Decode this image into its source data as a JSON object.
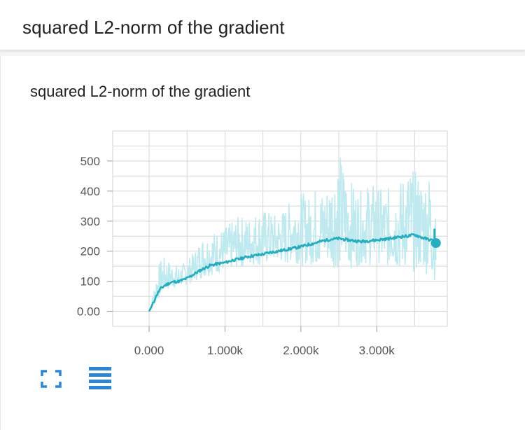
{
  "header": {
    "title": "squared L2-norm of the gradient"
  },
  "card": {
    "title": "squared L2-norm of the gradient",
    "buttons": {
      "fullscreen": "fullscreen-icon",
      "toggle_log": "list-lines-icon"
    }
  },
  "colors": {
    "smoothed": "#26adbf",
    "raw": "#bde9ef",
    "grid": "#d6d6d6"
  },
  "chart_data": {
    "type": "line",
    "title": "",
    "xlabel": "",
    "ylabel": "",
    "xlim": [
      -480,
      3930
    ],
    "ylim": [
      -50,
      600
    ],
    "x_ticks": [
      0,
      1000,
      2000,
      3000
    ],
    "x_tick_labels": [
      "0.000",
      "1.000k",
      "2.000k",
      "3.000k"
    ],
    "y_ticks": [
      0,
      100,
      200,
      300,
      400,
      500
    ],
    "y_tick_labels": [
      "0.00",
      "100",
      "200",
      "300",
      "400",
      "500"
    ],
    "grid": true,
    "series": [
      {
        "role": "smoothed",
        "x": [
          0,
          50,
          100,
          150,
          200,
          250,
          300,
          400,
          500,
          600,
          700,
          800,
          900,
          1000,
          1100,
          1200,
          1300,
          1400,
          1500,
          1600,
          1700,
          1800,
          1900,
          2000,
          2100,
          2200,
          2300,
          2400,
          2500,
          2600,
          2700,
          2800,
          2900,
          3000,
          3100,
          3200,
          3300,
          3400,
          3500,
          3600,
          3700,
          3750,
          3780
        ],
        "y": [
          0,
          25,
          55,
          75,
          85,
          92,
          97,
          100,
          110,
          125,
          140,
          152,
          158,
          162,
          170,
          175,
          182,
          186,
          190,
          196,
          200,
          205,
          210,
          215,
          222,
          228,
          235,
          240,
          242,
          238,
          235,
          232,
          235,
          237,
          240,
          243,
          248,
          250,
          255,
          245,
          238,
          235,
          227
        ]
      },
      {
        "role": "raw",
        "x": [
          0,
          50,
          100,
          150,
          200,
          250,
          300,
          400,
          500,
          600,
          700,
          800,
          900,
          1000,
          1100,
          1200,
          1300,
          1400,
          1500,
          1600,
          1700,
          1800,
          1900,
          2000,
          2100,
          2200,
          2300,
          2400,
          2500,
          2600,
          2700,
          2800,
          2900,
          3000,
          3100,
          3200,
          3300,
          3400,
          3500,
          3600,
          3700,
          3750,
          3780
        ],
        "y_min": [
          0,
          10,
          30,
          50,
          60,
          70,
          75,
          80,
          90,
          100,
          110,
          120,
          125,
          130,
          140,
          145,
          150,
          155,
          150,
          160,
          165,
          150,
          170,
          150,
          160,
          145,
          160,
          150,
          140,
          150,
          140,
          160,
          150,
          170,
          140,
          150,
          130,
          140,
          130,
          130,
          120,
          100,
          110
        ],
        "y_max": [
          0,
          60,
          130,
          170,
          180,
          170,
          160,
          150,
          170,
          200,
          250,
          260,
          270,
          280,
          300,
          320,
          310,
          330,
          340,
          330,
          320,
          350,
          380,
          400,
          380,
          420,
          400,
          450,
          540,
          460,
          420,
          400,
          430,
          420,
          400,
          420,
          430,
          480,
          470,
          450,
          470,
          400,
          300
        ]
      }
    ]
  }
}
